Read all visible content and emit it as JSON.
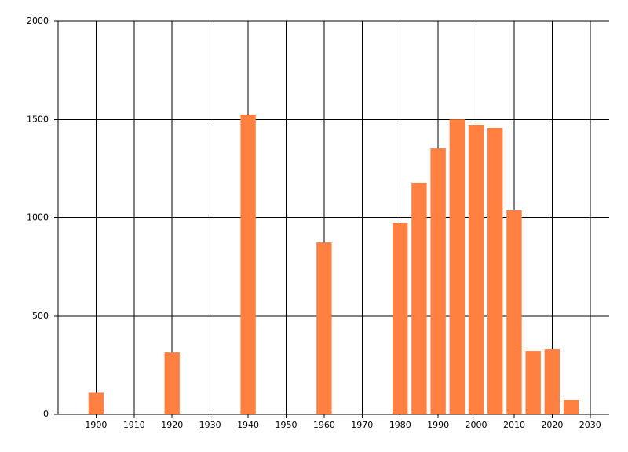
{
  "chart_data": {
    "type": "bar",
    "x": [
      1900,
      1920,
      1940,
      1960,
      1980,
      1985,
      1990,
      1995,
      2000,
      2005,
      2010,
      2015,
      2020,
      2025
    ],
    "values": [
      110,
      315,
      1525,
      874,
      974,
      1178,
      1353,
      1500,
      1473,
      1457,
      1038,
      323,
      331,
      72
    ],
    "color": "#ff8040",
    "xlim": [
      1890,
      2035
    ],
    "xticks": [
      1900,
      1910,
      1920,
      1930,
      1940,
      1950,
      1960,
      1970,
      1980,
      1990,
      2000,
      2010,
      2020,
      2030
    ],
    "ylim": [
      0,
      2000
    ],
    "yticks": [
      0,
      500,
      1000,
      1500,
      2000
    ],
    "grid": true
  }
}
